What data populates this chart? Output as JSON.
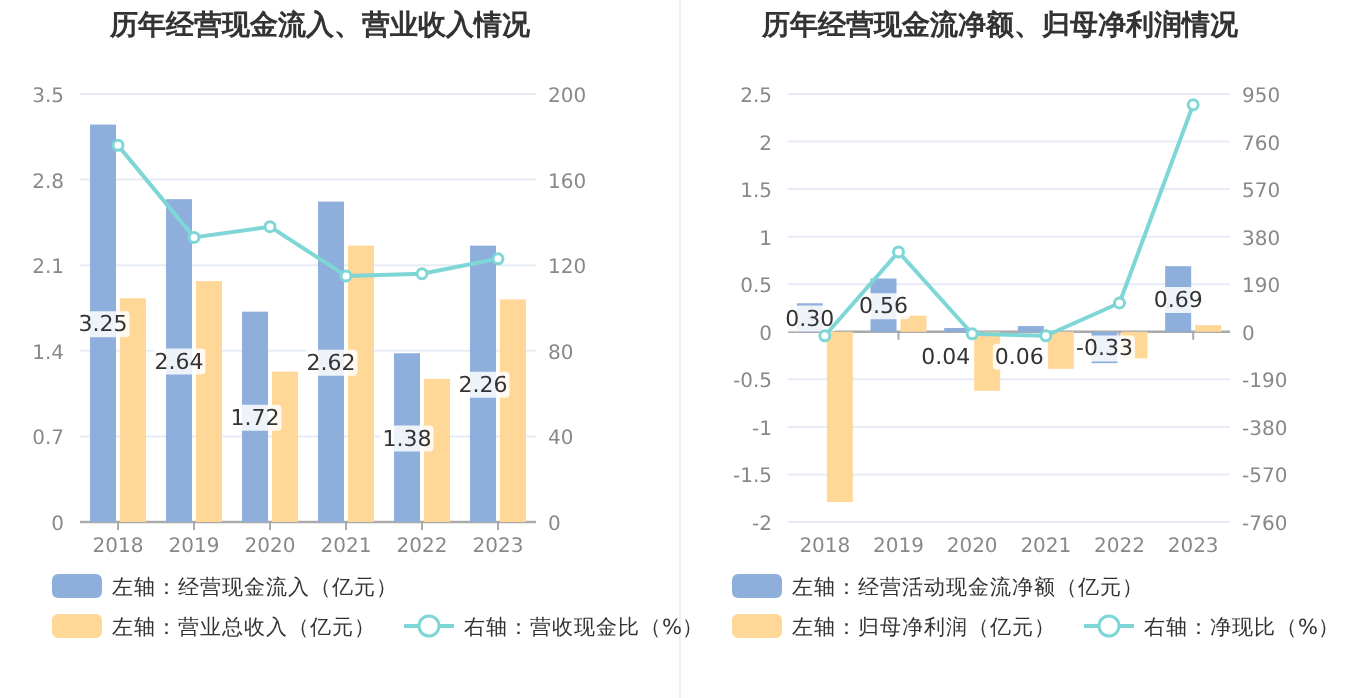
{
  "chart_data": [
    {
      "type": "bar",
      "title": "历年经营现金流入、营业收入情况",
      "categories": [
        "2018",
        "2019",
        "2020",
        "2021",
        "2022",
        "2023"
      ],
      "series": [
        {
          "name": "左轴：经营现金流入（亿元）",
          "color": "#8eaedc",
          "values": [
            3.25,
            2.64,
            1.72,
            2.62,
            1.38,
            2.26
          ],
          "value_labels": [
            "3.25",
            "2.64",
            "1.72",
            "2.62",
            "1.38",
            "2.26"
          ]
        },
        {
          "name": "左轴：营业总收入（亿元）",
          "color": "#ffd898",
          "values": [
            1.83,
            1.97,
            1.23,
            2.26,
            1.17,
            1.82
          ]
        },
        {
          "name": "右轴：营收现金比（%）",
          "type": "line",
          "axis": "y2",
          "marker": "circle",
          "color": "#7fd6d6",
          "values": [
            176,
            133,
            138,
            115,
            116,
            123
          ]
        }
      ],
      "ylim": [
        0,
        3.5
      ],
      "yticks": [
        0,
        0.7,
        1.4,
        2.1,
        2.8,
        3.5
      ],
      "y2lim": [
        0,
        200
      ],
      "y2ticks": [
        0,
        40,
        80,
        120,
        160,
        200
      ],
      "grid": "y",
      "legend": "bottom"
    },
    {
      "type": "bar",
      "title": "历年经营现金流净额、归母净利润情况",
      "categories": [
        "2018",
        "2019",
        "2020",
        "2021",
        "2022",
        "2023"
      ],
      "series": [
        {
          "name": "左轴：经营活动现金流净额（亿元）",
          "color": "#8eaedc",
          "values": [
            0.3,
            0.56,
            0.04,
            0.06,
            -0.33,
            0.69
          ],
          "value_labels": [
            "0.30",
            "0.56",
            "0.04",
            "0.06",
            "-0.33",
            "0.69"
          ]
        },
        {
          "name": "左轴：归母净利润（亿元）",
          "color": "#ffd898",
          "values": [
            -1.79,
            0.17,
            -0.62,
            -0.39,
            -0.28,
            0.07
          ]
        },
        {
          "name": "右轴：净现比（%）",
          "type": "line",
          "axis": "y2",
          "marker": "circle",
          "color": "#7fd6d6",
          "values": [
            -16,
            319,
            -8,
            -16,
            115,
            907
          ]
        }
      ],
      "ylim": [
        -2,
        2.5
      ],
      "yticks": [
        -2,
        -1.5,
        -1,
        -0.5,
        0,
        0.5,
        1,
        1.5,
        2,
        2.5
      ],
      "y2lim": [
        -760,
        950
      ],
      "y2ticks": [
        -760,
        -570,
        -380,
        -190,
        0,
        190,
        380,
        570,
        760,
        950
      ],
      "grid": "y",
      "legend": "bottom"
    }
  ]
}
